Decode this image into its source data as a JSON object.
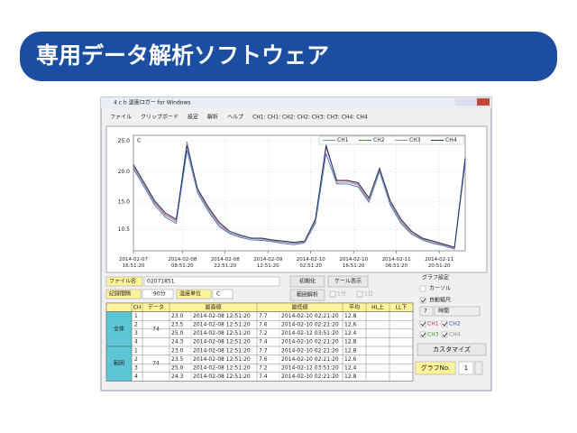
{
  "banner": {
    "title": "専用データ解析ソフトウェア"
  },
  "window": {
    "title": "4 c h 温度ロガー for Windows",
    "menu": [
      "ファイル",
      "クリップボード",
      "設定",
      "解析",
      "ヘルプ",
      "CH1: CH1: CH2: CH2: CH3: CH3: CH4: CH4"
    ]
  },
  "chart_data": {
    "type": "line",
    "unit_label": "C",
    "x": [
      "2014-02-07 16:51:20",
      "2014-02-07 20:21:20",
      "2014-02-07 23:51:20",
      "2014-02-08 03:21:20",
      "2014-02-08 06:51:20",
      "2014-02-08 10:21:20",
      "2014-02-08 13:51:20",
      "2014-02-08 17:21:20",
      "2014-02-08 20:51:20",
      "2014-02-09 00:21:20",
      "2014-02-09 03:51:20",
      "2014-02-09 07:21:20",
      "2014-02-09 10:51:20",
      "2014-02-09 14:21:20",
      "2014-02-09 17:51:20",
      "2014-02-09 21:21:20",
      "2014-02-10 00:51:20",
      "2014-02-10 04:21:20",
      "2014-02-10 07:51:20",
      "2014-02-10 11:21:20",
      "2014-02-10 14:51:20",
      "2014-02-10 18:21:20",
      "2014-02-10 21:51:20",
      "2014-02-11 01:21:20",
      "2014-02-11 04:51:20",
      "2014-02-11 08:21:20",
      "2014-02-11 11:51:20",
      "2014-02-11 15:21:20",
      "2014-02-11 18:51:20",
      "2014-02-11 22:21:20",
      "2014-02-12 01:51:20",
      "2014-02-12 05:21:20"
    ],
    "series": [
      {
        "name": "CH1",
        "color": "#e0707a",
        "values": [
          21,
          18,
          15,
          13,
          12,
          24.5,
          17,
          14,
          11.5,
          10,
          9.5,
          9,
          9,
          8.7,
          8.5,
          8.3,
          8.5,
          12,
          24,
          18.5,
          18.5,
          18,
          15.5,
          20.5,
          15,
          12,
          10,
          9,
          8.5,
          8,
          7.5,
          22
        ]
      },
      {
        "name": "CH2",
        "color": "#4a6fd0",
        "values": [
          20.5,
          17.5,
          14.5,
          12.5,
          11.5,
          23.5,
          16.5,
          13.5,
          11,
          9.8,
          9.2,
          8.8,
          8.7,
          8.5,
          8.2,
          8,
          8.3,
          11.5,
          23,
          18,
          18,
          17.5,
          15,
          20,
          14.5,
          11.5,
          9.7,
          8.8,
          8.2,
          7.8,
          7.3,
          21.5
        ]
      },
      {
        "name": "CH3",
        "color": "#8a9a9a",
        "values": [
          20.8,
          17.8,
          14.8,
          12.8,
          11.8,
          25,
          16.8,
          13.8,
          11.2,
          10,
          9.4,
          9,
          8.9,
          8.6,
          8.4,
          8.2,
          8.4,
          11.8,
          24.5,
          18.2,
          18.3,
          17.8,
          15.2,
          20.3,
          14.8,
          11.8,
          9.8,
          8.9,
          8.3,
          7.9,
          7.4,
          22.5
        ]
      },
      {
        "name": "CH4",
        "color": "#1c2f5a",
        "values": [
          21.2,
          18.2,
          15.2,
          13.2,
          12.2,
          24.3,
          17.2,
          14.2,
          11.7,
          10.2,
          9.6,
          9.1,
          9.1,
          8.8,
          8.6,
          8.4,
          8.6,
          12.2,
          24.3,
          18.6,
          18.6,
          18.2,
          15.7,
          20.6,
          15.2,
          12.2,
          10.2,
          9.1,
          8.6,
          8.1,
          7.6,
          22.2
        ]
      }
    ],
    "ylim": [
      7,
      26
    ],
    "yticks": [
      {
        "value": 25,
        "label": "25.0"
      },
      {
        "value": 20,
        "label": "20.0"
      },
      {
        "value": 15,
        "label": "15.0"
      },
      10.5
    ],
    "xticks": [
      "2014-02-07 16:51:20",
      "2014-02-08 08:51:20",
      "2014-02-08 22:51:20",
      "2014-02-09 12:51:20",
      "2014-02-10 02:51:20",
      "2014-02-10 16:51:20",
      "2014-02-11 06:51:20",
      "2014-02-11 20:51:20"
    ],
    "grid": true,
    "legend": "top-right"
  },
  "panel": {
    "file_label": "ファイル名",
    "file_name": "02071851",
    "interval_label": "記録間隔",
    "interval": "90分",
    "unit_label": "温度単位",
    "unit": "C",
    "buttons": [
      "初期化",
      "ケール表示",
      "範囲解析"
    ],
    "options": [
      "1分",
      "1日"
    ]
  },
  "settings": {
    "title": "グラフ設定",
    "cursor": "カーソル",
    "auto_scale": "自動縮尺",
    "span_value": "7",
    "span_unit": "時間",
    "channels": [
      "CH1",
      "CH2",
      "CH3",
      "CH4"
    ],
    "customize": "カスタマイズ",
    "graph_no_label": "グラフNo.",
    "graph_no": "1"
  },
  "table": {
    "headers": [
      "CH",
      "データ",
      "最高値",
      "最低値",
      "平均",
      "HL上",
      "LL下"
    ],
    "groups": [
      {
        "name": "全体",
        "data": "74",
        "rows": [
          [
            "1",
            "23.0",
            "2014-02-08 12:51:20",
            "7.7",
            "2014-02-10 02:21:20",
            "12.8"
          ],
          [
            "2",
            "23.5",
            "2014-02-08 12:51:20",
            "7.6",
            "2014-02-10 02:21:20",
            "12.6"
          ],
          [
            "3",
            "25.0",
            "2014-02-08 12:51:20",
            "7.2",
            "2014-02-12 03:51:20",
            "12.4"
          ],
          [
            "4",
            "24.3",
            "2014-02-08 12:51:20",
            "7.4",
            "2014-02-10 02:21:20",
            "12.8"
          ]
        ]
      },
      {
        "name": "範囲",
        "data": "74",
        "rows": [
          [
            "1",
            "23.0",
            "2014-02-08 12:51:20",
            "7.7",
            "2014-02-10 02:21:20",
            "12.8"
          ],
          [
            "2",
            "23.5",
            "2014-02-08 12:51:20",
            "7.6",
            "2014-02-10 02:21:20",
            "12.6"
          ],
          [
            "3",
            "25.0",
            "2014-02-08 12:51:20",
            "7.2",
            "2014-02-12 03:51:20",
            "12.4"
          ],
          [
            "4",
            "24.3",
            "2014-02-08 12:51:20",
            "7.4",
            "2014-02-10 02:21:20",
            "12.8"
          ]
        ]
      }
    ]
  }
}
